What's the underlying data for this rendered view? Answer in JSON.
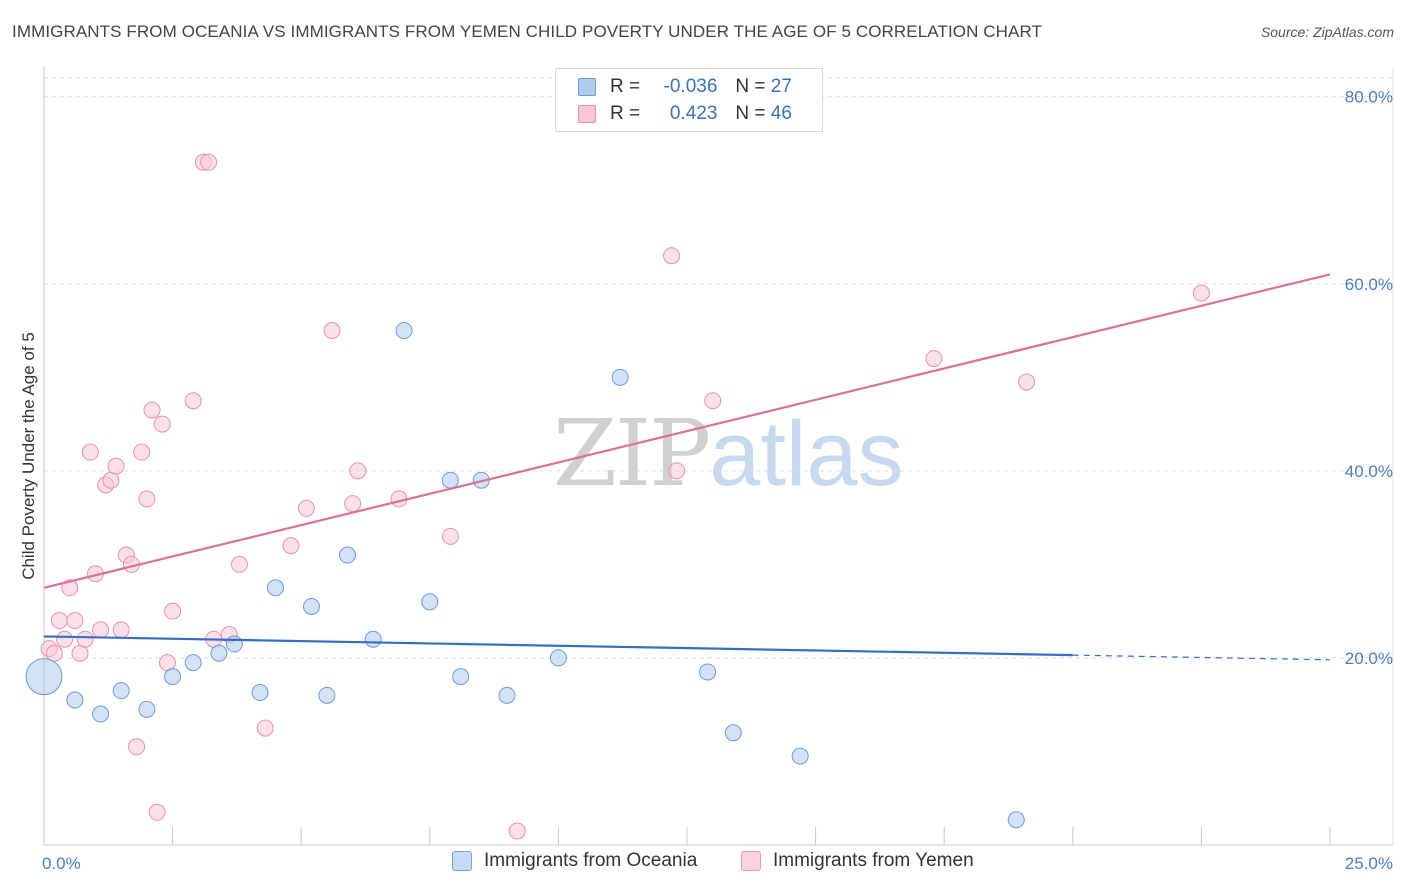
{
  "header": {
    "title": "IMMIGRANTS FROM OCEANIA VS IMMIGRANTS FROM YEMEN CHILD POVERTY UNDER THE AGE OF 5 CORRELATION CHART",
    "source": "Source: ZipAtlas.com"
  },
  "watermark": {
    "zip": "ZIP",
    "atlas": "atlas"
  },
  "legend": {
    "rows": [
      {
        "r_label": "R =",
        "r_value": "-0.036",
        "n_label": "N =",
        "n_value": "27",
        "color": "#aecbf0",
        "border": "#6f9bd8"
      },
      {
        "r_label": "R =",
        "r_value": "0.423",
        "n_label": "N =",
        "n_value": "46",
        "color": "#f9c6d5",
        "border": "#e991ac"
      }
    ]
  },
  "bottom_legend": {
    "oceania": "Immigrants from Oceania",
    "yemen": "Immigrants from Yemen"
  },
  "chart_data": {
    "type": "scatter",
    "title": "IMMIGRANTS FROM OCEANIA VS IMMIGRANTS FROM YEMEN CHILD POVERTY UNDER THE AGE OF 5 CORRELATION CHART",
    "xlabel": "",
    "ylabel": "Child Poverty Under the Age of 5",
    "x_tick_labels": [
      "0.0%",
      "25.0%"
    ],
    "y_tick_labels": [
      "20.0%",
      "40.0%",
      "60.0%",
      "80.0%"
    ],
    "y_ticks": [
      20,
      40,
      60,
      80
    ],
    "xlim": [
      0,
      25
    ],
    "ylim": [
      0,
      82
    ],
    "grid": true,
    "legend_position": "top-center",
    "series": [
      {
        "name": "Immigrants from Oceania",
        "color": "#aecbf0",
        "stroke": "#6f9bd8",
        "line_color": "#2f6fd0",
        "trend": {
          "x0": 0,
          "y0": 22.3,
          "x1": 20,
          "y1": 20.3,
          "dash_to": 25,
          "dash_y": 19.8
        },
        "points": [
          {
            "x": 0.0,
            "y": 18.0,
            "big": true
          },
          {
            "x": 0.6,
            "y": 15.5
          },
          {
            "x": 1.1,
            "y": 14.0
          },
          {
            "x": 1.5,
            "y": 16.5
          },
          {
            "x": 2.0,
            "y": 14.5
          },
          {
            "x": 2.5,
            "y": 18.0
          },
          {
            "x": 2.9,
            "y": 19.5
          },
          {
            "x": 3.4,
            "y": 20.5
          },
          {
            "x": 3.7,
            "y": 21.5
          },
          {
            "x": 4.2,
            "y": 16.3
          },
          {
            "x": 4.5,
            "y": 27.5
          },
          {
            "x": 5.2,
            "y": 25.5
          },
          {
            "x": 5.5,
            "y": 16.0
          },
          {
            "x": 5.9,
            "y": 31.0
          },
          {
            "x": 6.4,
            "y": 22.0
          },
          {
            "x": 7.0,
            "y": 55.0
          },
          {
            "x": 7.5,
            "y": 26.0
          },
          {
            "x": 7.9,
            "y": 39.0
          },
          {
            "x": 8.1,
            "y": 18.0
          },
          {
            "x": 8.5,
            "y": 39.0
          },
          {
            "x": 9.0,
            "y": 16.0
          },
          {
            "x": 10.0,
            "y": 20.0
          },
          {
            "x": 11.2,
            "y": 50.0
          },
          {
            "x": 12.9,
            "y": 18.5
          },
          {
            "x": 13.4,
            "y": 12.0
          },
          {
            "x": 14.7,
            "y": 9.5
          },
          {
            "x": 18.9,
            "y": 2.7
          }
        ]
      },
      {
        "name": "Immigrants from Yemen",
        "color": "#f9c6d5",
        "stroke": "#e991ac",
        "line_color": "#e0708f",
        "trend": {
          "x0": 0,
          "y0": 27.5,
          "x1": 25,
          "y1": 61.0
        },
        "points": [
          {
            "x": 0.1,
            "y": 21.0
          },
          {
            "x": 0.2,
            "y": 20.5
          },
          {
            "x": 0.3,
            "y": 24.0
          },
          {
            "x": 0.4,
            "y": 22.0
          },
          {
            "x": 0.5,
            "y": 27.5
          },
          {
            "x": 0.6,
            "y": 24.0
          },
          {
            "x": 0.7,
            "y": 20.5
          },
          {
            "x": 0.8,
            "y": 22.0
          },
          {
            "x": 0.9,
            "y": 42.0
          },
          {
            "x": 1.0,
            "y": 29.0
          },
          {
            "x": 1.1,
            "y": 23.0
          },
          {
            "x": 1.2,
            "y": 38.5
          },
          {
            "x": 1.3,
            "y": 39.0
          },
          {
            "x": 1.4,
            "y": 40.5
          },
          {
            "x": 1.5,
            "y": 23.0
          },
          {
            "x": 1.6,
            "y": 31.0
          },
          {
            "x": 1.7,
            "y": 30.0
          },
          {
            "x": 1.8,
            "y": 10.5
          },
          {
            "x": 1.9,
            "y": 42.0
          },
          {
            "x": 2.0,
            "y": 37.0
          },
          {
            "x": 2.1,
            "y": 46.5
          },
          {
            "x": 2.2,
            "y": 3.5
          },
          {
            "x": 2.3,
            "y": 45.0
          },
          {
            "x": 2.4,
            "y": 19.5
          },
          {
            "x": 2.5,
            "y": 25.0
          },
          {
            "x": 2.9,
            "y": 47.5
          },
          {
            "x": 3.1,
            "y": 73.0
          },
          {
            "x": 3.2,
            "y": 73.0
          },
          {
            "x": 3.3,
            "y": 22.0
          },
          {
            "x": 3.6,
            "y": 22.5
          },
          {
            "x": 3.8,
            "y": 30.0
          },
          {
            "x": 4.3,
            "y": 12.5
          },
          {
            "x": 4.8,
            "y": 32.0
          },
          {
            "x": 5.1,
            "y": 36.0
          },
          {
            "x": 5.6,
            "y": 55.0
          },
          {
            "x": 6.0,
            "y": 36.5
          },
          {
            "x": 6.1,
            "y": 40.0
          },
          {
            "x": 6.9,
            "y": 37.0
          },
          {
            "x": 7.9,
            "y": 33.0
          },
          {
            "x": 9.2,
            "y": 1.5
          },
          {
            "x": 12.2,
            "y": 63.0
          },
          {
            "x": 12.3,
            "y": 40.0
          },
          {
            "x": 13.0,
            "y": 47.5
          },
          {
            "x": 17.3,
            "y": 52.0
          },
          {
            "x": 19.1,
            "y": 49.5
          },
          {
            "x": 22.5,
            "y": 59.0
          }
        ]
      }
    ]
  }
}
